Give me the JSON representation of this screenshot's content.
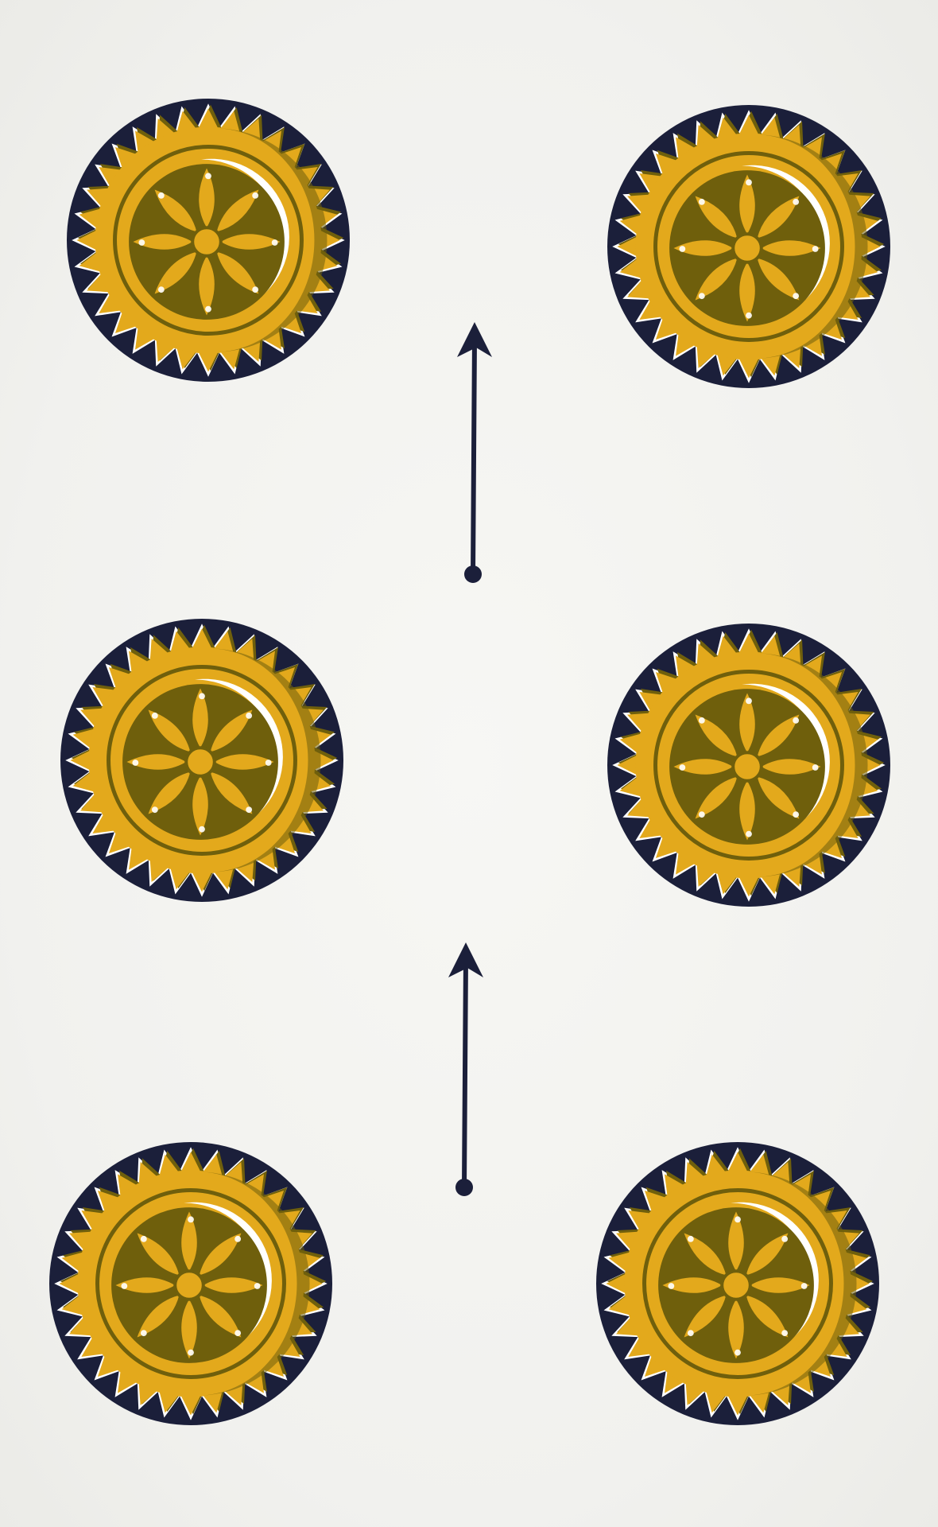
{
  "card": {
    "suit": "coins",
    "rank": 6,
    "coin_count": 6,
    "arrow_count": 2,
    "arrow_direction": "up"
  },
  "colors": {
    "paper": "#f3f3f0",
    "gold": "#e3a91c",
    "olive": "#6f5f0c",
    "ink": "#1b1f3a",
    "white": "#ffffff"
  },
  "coin": {
    "rim_teeth": 32,
    "flower_petals": 8
  }
}
